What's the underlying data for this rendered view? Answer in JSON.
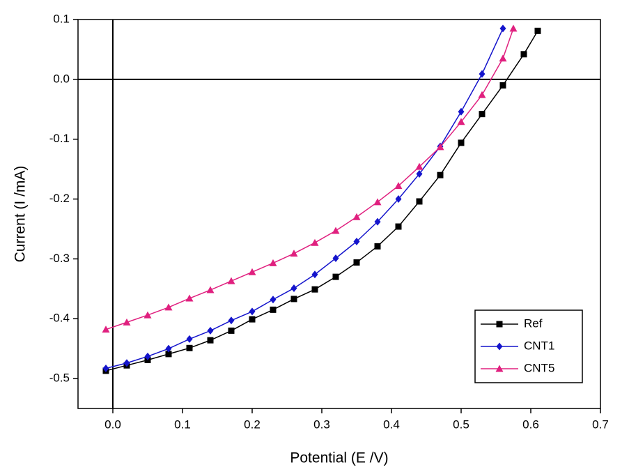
{
  "chart_data": {
    "type": "line",
    "x_label": "Potential (E /V)",
    "y_label": "Current (I /mA)",
    "xlim": [
      -0.05,
      0.7
    ],
    "ylim": [
      -0.55,
      0.1
    ],
    "xticks": [
      {
        "value": 0,
        "label": "0.0"
      },
      0.1,
      0.2,
      0.3,
      0.4,
      0.5,
      0.6,
      0.7
    ],
    "yticks": [
      0.1,
      {
        "value": 0,
        "label": "0.0"
      },
      -0.1,
      -0.2,
      -0.3,
      -0.4,
      -0.5
    ],
    "zero_lines": true,
    "legend": "lower right",
    "series": [
      {
        "name": "Ref",
        "color": "#000000",
        "marker": "square",
        "x": [
          -0.01,
          0.02,
          0.05,
          0.08,
          0.11,
          0.14,
          0.17,
          0.2,
          0.23,
          0.26,
          0.29,
          0.32,
          0.35,
          0.38,
          0.41,
          0.44,
          0.47,
          0.5,
          0.53,
          0.56,
          0.59,
          0.61
        ],
        "values": [
          -0.487,
          -0.478,
          -0.469,
          -0.459,
          -0.449,
          -0.436,
          -0.42,
          -0.401,
          -0.385,
          -0.367,
          -0.351,
          -0.33,
          -0.306,
          -0.279,
          -0.246,
          -0.204,
          -0.16,
          -0.106,
          -0.058,
          -0.01,
          0.042,
          0.081
        ]
      },
      {
        "name": "CNT1",
        "color": "#1414cc",
        "marker": "diamond",
        "x": [
          -0.01,
          0.02,
          0.05,
          0.08,
          0.11,
          0.14,
          0.17,
          0.2,
          0.23,
          0.26,
          0.29,
          0.32,
          0.35,
          0.38,
          0.41,
          0.44,
          0.47,
          0.5,
          0.53,
          0.56
        ],
        "values": [
          -0.483,
          -0.474,
          -0.463,
          -0.45,
          -0.434,
          -0.42,
          -0.403,
          -0.388,
          -0.368,
          -0.349,
          -0.326,
          -0.299,
          -0.271,
          -0.238,
          -0.2,
          -0.158,
          -0.112,
          -0.054,
          0.009,
          0.085
        ]
      },
      {
        "name": "CNT5",
        "color": "#e0207f",
        "marker": "triangle",
        "x": [
          -0.01,
          0.02,
          0.05,
          0.08,
          0.11,
          0.14,
          0.17,
          0.2,
          0.23,
          0.26,
          0.29,
          0.32,
          0.35,
          0.38,
          0.41,
          0.44,
          0.47,
          0.5,
          0.53,
          0.56,
          0.575
        ],
        "values": [
          -0.418,
          -0.406,
          -0.394,
          -0.381,
          -0.366,
          -0.352,
          -0.337,
          -0.322,
          -0.307,
          -0.291,
          -0.273,
          -0.253,
          -0.23,
          -0.205,
          -0.178,
          -0.146,
          -0.113,
          -0.071,
          -0.026,
          0.035,
          0.085
        ]
      }
    ]
  }
}
